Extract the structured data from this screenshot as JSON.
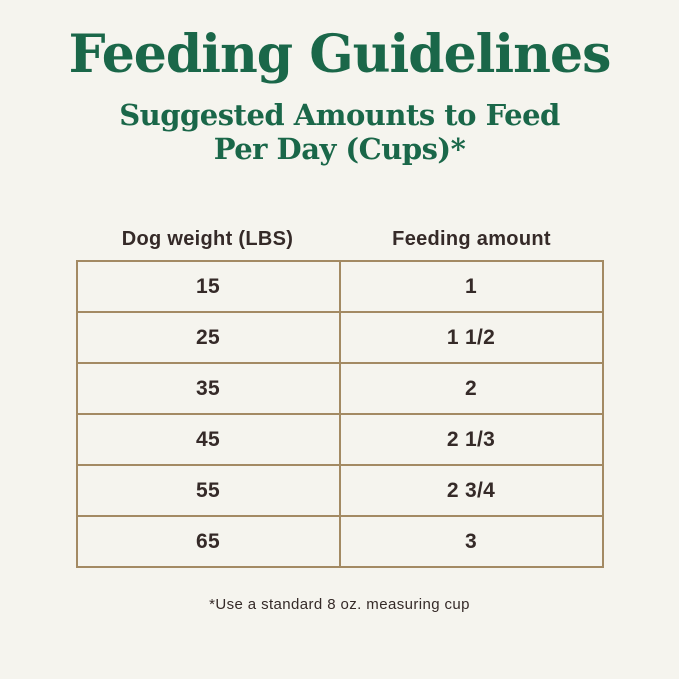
{
  "page": {
    "subtitle_line1": "Suggested Amounts to Feed",
    "subtitle_line2": "Per Day (Cups)*"
  },
  "chart_data": {
    "type": "table",
    "title": "Feeding Guidelines",
    "subtitle": "Suggested Amounts to Feed Per Day (Cups)*",
    "columns": [
      "Dog weight (LBS)",
      "Feeding amount"
    ],
    "rows": [
      [
        "15",
        "1"
      ],
      [
        "25",
        "1 1/2"
      ],
      [
        "35",
        "2"
      ],
      [
        "45",
        "2 1/3"
      ],
      [
        "55",
        "2 3/4"
      ],
      [
        "65",
        "3"
      ]
    ],
    "footnote": "*Use a standard 8 oz. measuring cup"
  },
  "colors": {
    "background": "#f5f4ee",
    "heading_green": "#1a6749",
    "text_dark": "#352a28",
    "table_border": "#a38a63"
  }
}
